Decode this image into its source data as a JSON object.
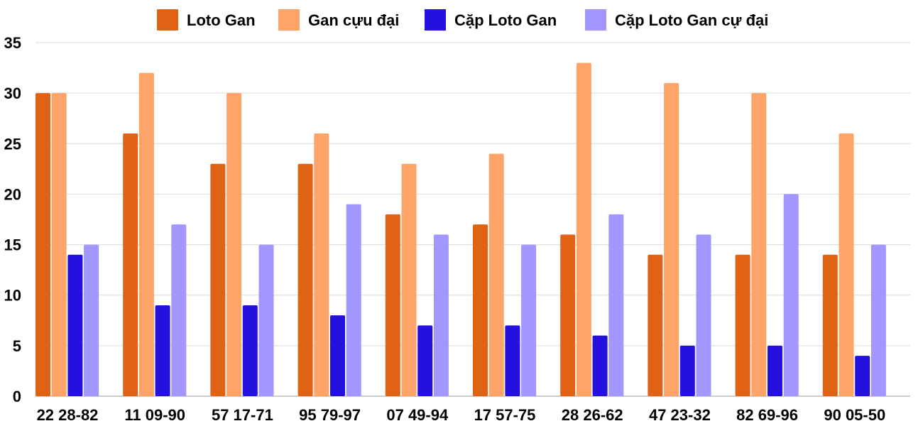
{
  "chart_data": {
    "type": "bar",
    "categories": [
      "22 28-82",
      "11 09-90",
      "57 17-71",
      "95 79-97",
      "07 49-94",
      "17 57-75",
      "28 26-62",
      "47 23-32",
      "82 69-96",
      "90 05-50"
    ],
    "series": [
      {
        "name": "Loto Gan",
        "color": "#e06215",
        "values": [
          30,
          26,
          23,
          23,
          18,
          17,
          16,
          14,
          14,
          14
        ]
      },
      {
        "name": "Gan cựu đại",
        "color": "#ffa468",
        "values": [
          30,
          32,
          30,
          26,
          23,
          24,
          33,
          31,
          30,
          26
        ]
      },
      {
        "name": "Cặp Loto Gan",
        "color": "#2411e0",
        "values": [
          14,
          9,
          9,
          8,
          7,
          7,
          6,
          5,
          5,
          4
        ]
      },
      {
        "name": "Cặp Loto Gan cự đại",
        "color": "#a197fe",
        "values": [
          15,
          17,
          15,
          19,
          16,
          15,
          18,
          16,
          20,
          15
        ]
      }
    ],
    "ylim": [
      0,
      35
    ],
    "yticks": [
      "0",
      "5",
      "10",
      "15",
      "20",
      "25",
      "30",
      "35"
    ],
    "grid": true,
    "legend_position": "top"
  }
}
